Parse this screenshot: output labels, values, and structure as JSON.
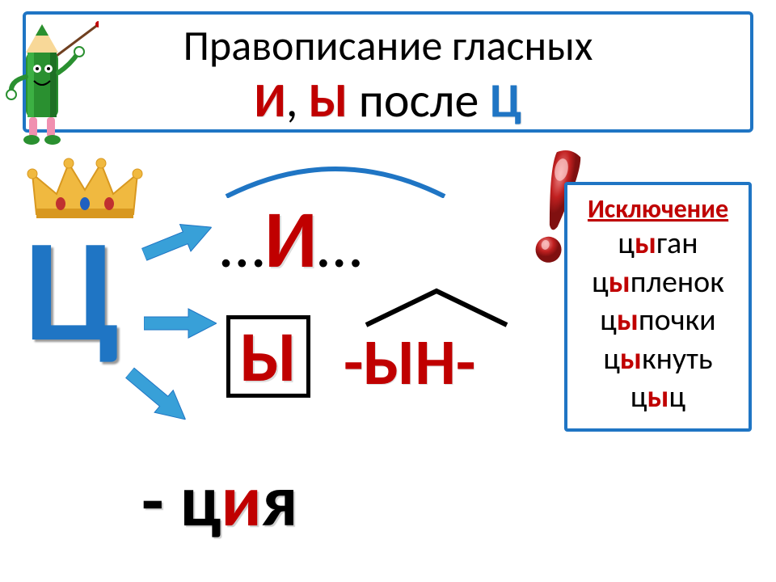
{
  "title": {
    "line1": "Правописание гласных",
    "letter_i": "И",
    "letter_y": "Ы",
    "word_after": " после ",
    "letter_ts": "Ц",
    "comma": ", "
  },
  "big_ts": "Ц",
  "row1": {
    "pre": "…",
    "letter": "И",
    "post": "…"
  },
  "row2": {
    "boxed": "Ы",
    "suffix": "-ЫН-"
  },
  "row3": {
    "dash": "- ",
    "p1": "ц",
    "p2": "и",
    "p3": "я"
  },
  "exception": {
    "title": "Исключение",
    "words": [
      {
        "pre": "ц",
        "y": "ы",
        "post": "ган"
      },
      {
        "pre": "ц",
        "y": "ы",
        "post": "пленок"
      },
      {
        "pre": "ц",
        "y": "ы",
        "post": "почки"
      },
      {
        "pre": "ц",
        "y": "ы",
        "post": "кнуть"
      },
      {
        "pre": "ц",
        "y": "ы",
        "post": "ц"
      }
    ]
  },
  "style": {
    "border_color": "#1f75c4",
    "red": "#c00000",
    "blue": "#1f75c4",
    "arrow_color": "#38a0d8",
    "crown_gold": "#f0b940",
    "crown_gold_dark": "#d89820",
    "crown_jewel": "#c03030",
    "exclaim_red": "#b01818",
    "exclaim_highlight": "#f08080",
    "pencil_green": "#2a9030",
    "pencil_face": "#f8d898",
    "pencil_pink": "#f090b0",
    "arc_color": "#1f75c4",
    "roof_color": "#000000"
  }
}
